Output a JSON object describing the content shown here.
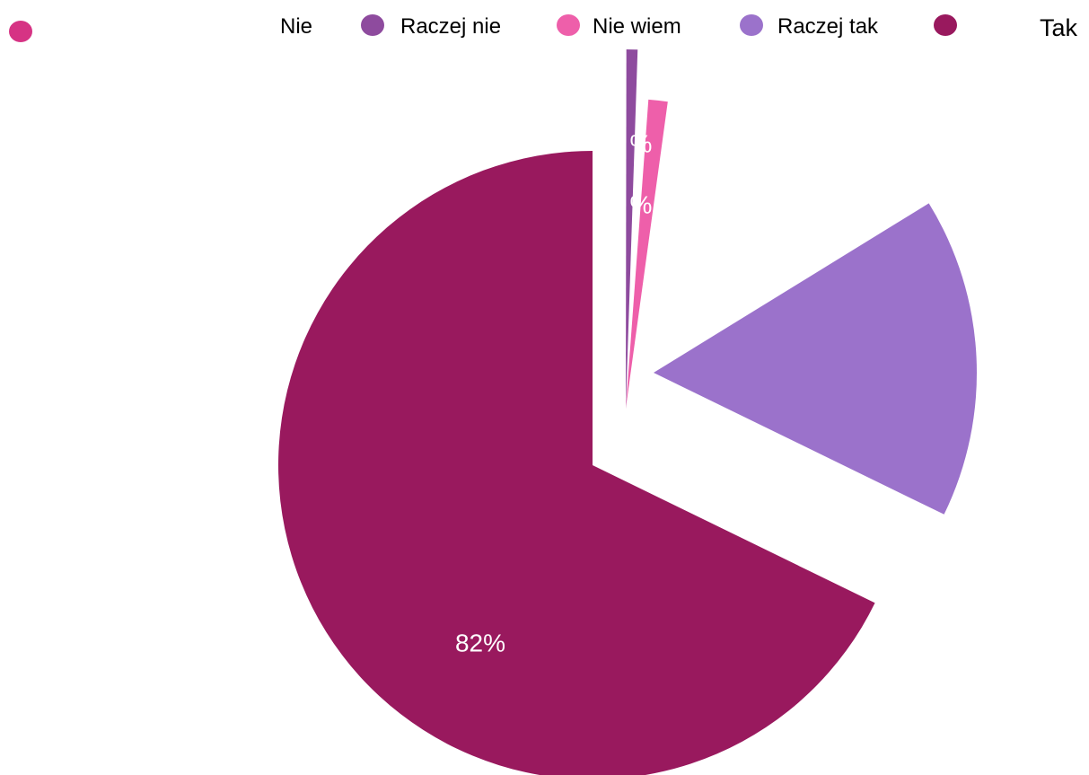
{
  "chart_data": {
    "type": "pie",
    "title": "",
    "legend_position": "top",
    "slices": [
      {
        "label": "Nie",
        "value": 1,
        "value_label": "",
        "color": "#D63384"
      },
      {
        "label": "Raczej nie",
        "value": 0.5,
        "value_label": "",
        "color": "#8E4B9E"
      },
      {
        "label": "Nie wiem",
        "value": 1,
        "value_label": "%",
        "color": "#EE5FAA"
      },
      {
        "label": "Raczej tak",
        "value": 16,
        "value_label": "16%",
        "color": "#9B72CB"
      },
      {
        "label": "Tak",
        "value": 82,
        "value_label": "82%",
        "color": "#99195E"
      }
    ],
    "extra_labels": [
      "%"
    ]
  }
}
